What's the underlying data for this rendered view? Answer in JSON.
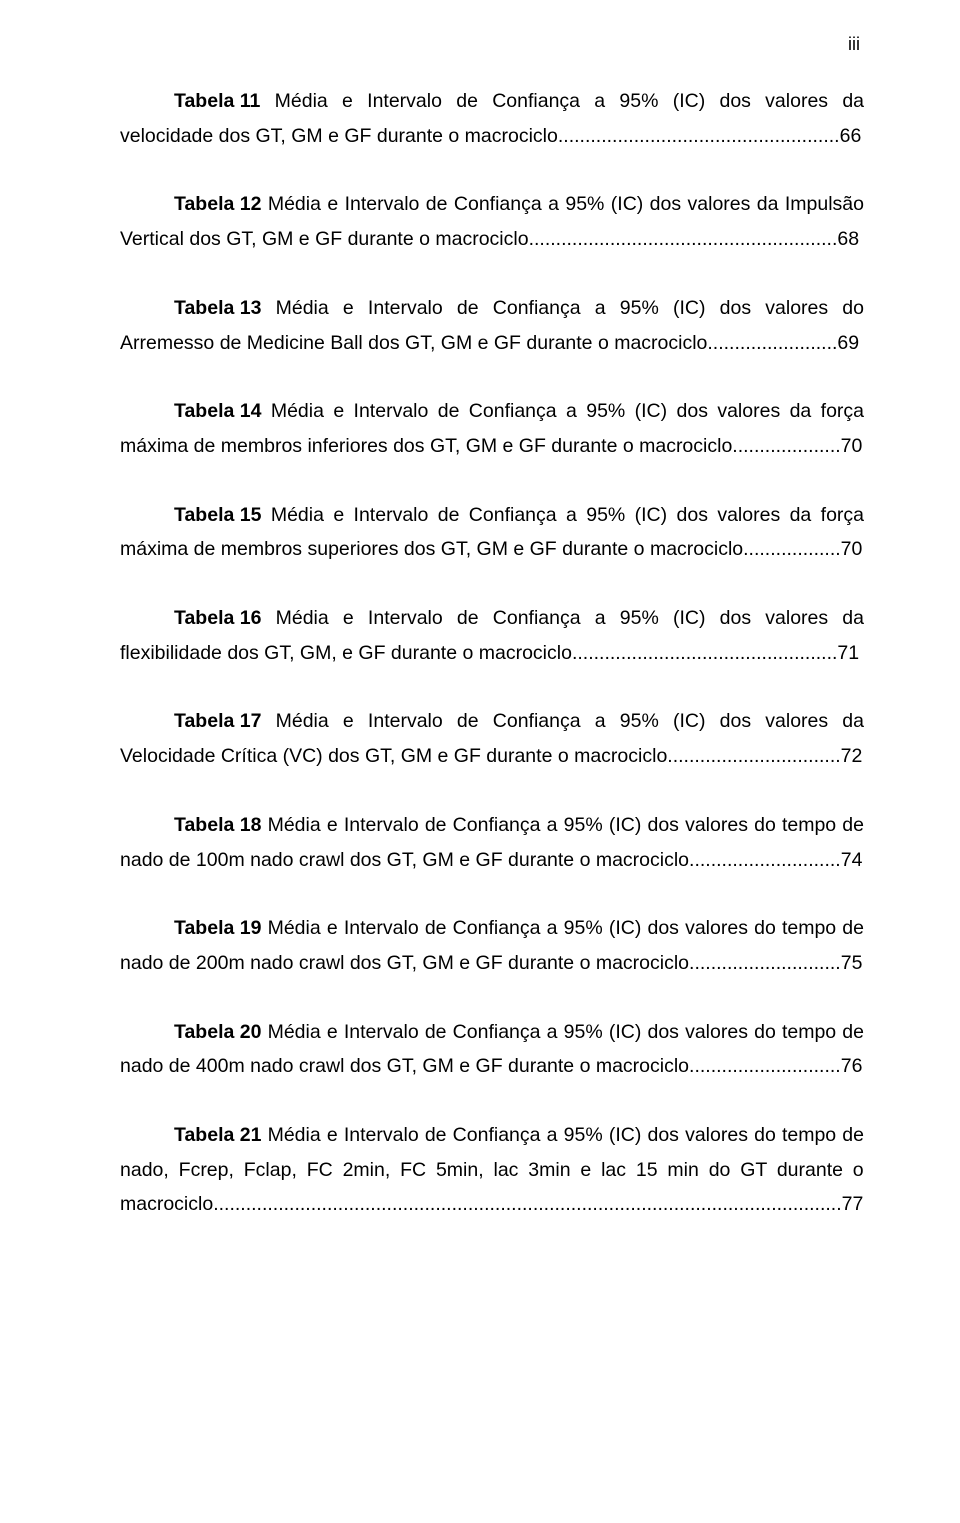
{
  "page_number_roman": "iii",
  "entries": [
    {
      "label": "Tabela 11",
      "desc": "Média e Intervalo de Confiança a 95% (IC) dos valores da velocidade dos GT, GM e GF durante o macrociclo",
      "page": "66"
    },
    {
      "label": "Tabela 12",
      "desc": "Média e Intervalo de Confiança a 95% (IC) dos valores da Impulsão Vertical dos GT, GM e GF durante o macrociclo",
      "page": "68"
    },
    {
      "label": "Tabela 13",
      "desc": "Média e Intervalo de Confiança a 95% (IC) dos valores do Arremesso de Medicine Ball dos GT, GM e GF durante o macrociclo",
      "page": "69"
    },
    {
      "label": "Tabela 14",
      "desc": "Média e Intervalo de Confiança a 95% (IC) dos valores da força máxima de membros inferiores dos GT, GM e GF durante o macrociclo",
      "page": "70"
    },
    {
      "label": "Tabela 15",
      "desc": "Média e Intervalo de Confiança a 95% (IC) dos valores da força máxima de membros superiores dos GT, GM e GF durante o macrociclo",
      "page": "70"
    },
    {
      "label": "Tabela 16",
      "desc": "Média e Intervalo de Confiança a 95% (IC) dos valores da flexibilidade dos GT, GM, e GF durante o macrociclo",
      "page": "71"
    },
    {
      "label": "Tabela 17",
      "desc": "Média e Intervalo de Confiança a 95% (IC) dos valores da Velocidade Crítica (VC) dos GT, GM e GF durante o macrociclo",
      "page": "72"
    },
    {
      "label": "Tabela 18",
      "desc": "Média e Intervalo de Confiança a 95% (IC) dos valores do tempo de nado de 100m nado crawl dos GT, GM e GF durante o macrociclo",
      "page": "74"
    },
    {
      "label": "Tabela 19",
      "desc": "Média e Intervalo de Confiança a 95% (IC) dos valores do tempo de nado de 200m nado crawl dos GT, GM e GF durante o macrociclo",
      "page": "75"
    },
    {
      "label": "Tabela 20",
      "desc": "Média e Intervalo de Confiança a 95% (IC) dos valores do tempo de nado de 400m nado crawl dos GT, GM e GF durante o macrociclo",
      "page": "76"
    },
    {
      "label": "Tabela 21",
      "desc": "Média e Intervalo de Confiança a 95% (IC) dos valores do tempo de nado, Fcrep, Fclap, FC 2min, FC 5min, lac 3min e lac 15 min do GT durante o macrociclo",
      "page": "77"
    }
  ]
}
